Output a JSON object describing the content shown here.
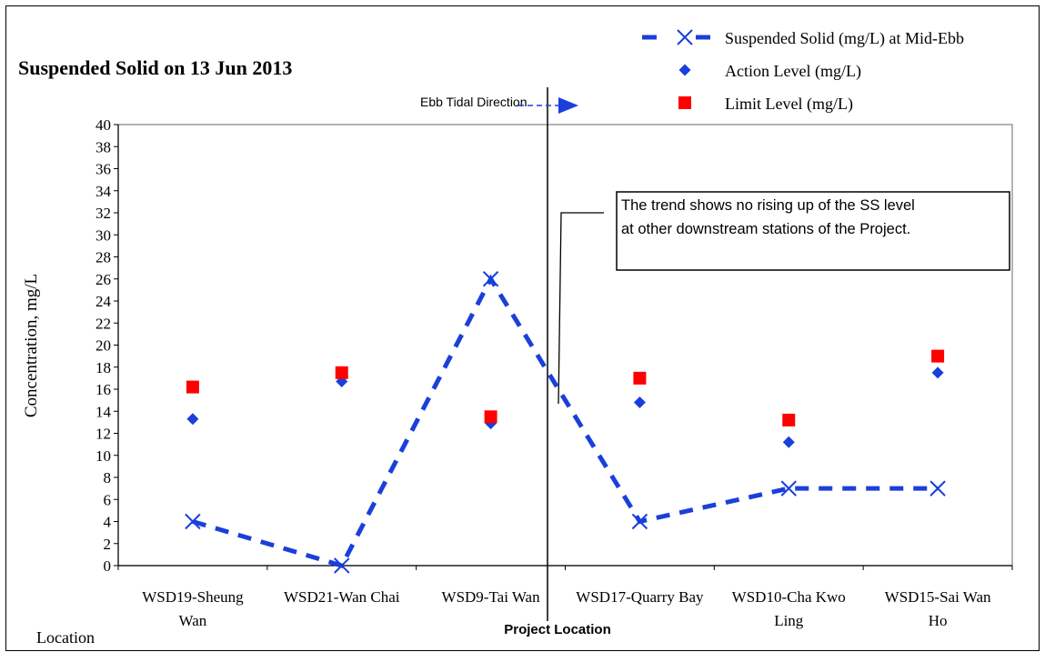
{
  "chart_data": {
    "type": "line",
    "title": "Suspended Solid on 13 Jun 2013",
    "ylabel": "Concentration, mg/L",
    "xlabel": "Location",
    "ylim": [
      0,
      40
    ],
    "y_ticks": [
      0,
      2,
      4,
      6,
      8,
      10,
      12,
      14,
      16,
      18,
      20,
      22,
      24,
      26,
      28,
      30,
      32,
      34,
      36,
      38,
      40
    ],
    "categories": [
      [
        "WSD19-Sheung",
        "Wan"
      ],
      [
        "WSD21-Wan Chai"
      ],
      [
        "WSD9-Tai Wan"
      ],
      [
        "WSD17-Quarry Bay"
      ],
      [
        "WSD10-Cha Kwo",
        "Ling"
      ],
      [
        "WSD15-Sai Wan",
        "Ho"
      ]
    ],
    "series": [
      {
        "name": "Suspended Solid (mg/L) at Mid-Ebb",
        "values": [
          4,
          0,
          26,
          4,
          7,
          7
        ],
        "color": "#1a3fdb",
        "marker": "x",
        "line": "dashed"
      },
      {
        "name": "Action Level (mg/L)",
        "values": [
          13.3,
          16.7,
          12.9,
          14.8,
          11.2,
          17.5
        ],
        "color": "#1a3fdb",
        "marker": "diamond",
        "line": "none"
      },
      {
        "name": "Limit Level (mg/L)",
        "values": [
          16.2,
          17.5,
          13.5,
          17.0,
          13.2,
          19.0
        ],
        "color": "#ff0000",
        "marker": "square",
        "line": "none"
      }
    ],
    "legend_position": "top-right",
    "grid": false,
    "annotations": {
      "ebb_direction": "Ebb Tidal Direction",
      "project_location": "Project Location",
      "callout": [
        "The trend shows no rising up of the SS level",
        "at other downstream stations of the Project."
      ]
    }
  }
}
